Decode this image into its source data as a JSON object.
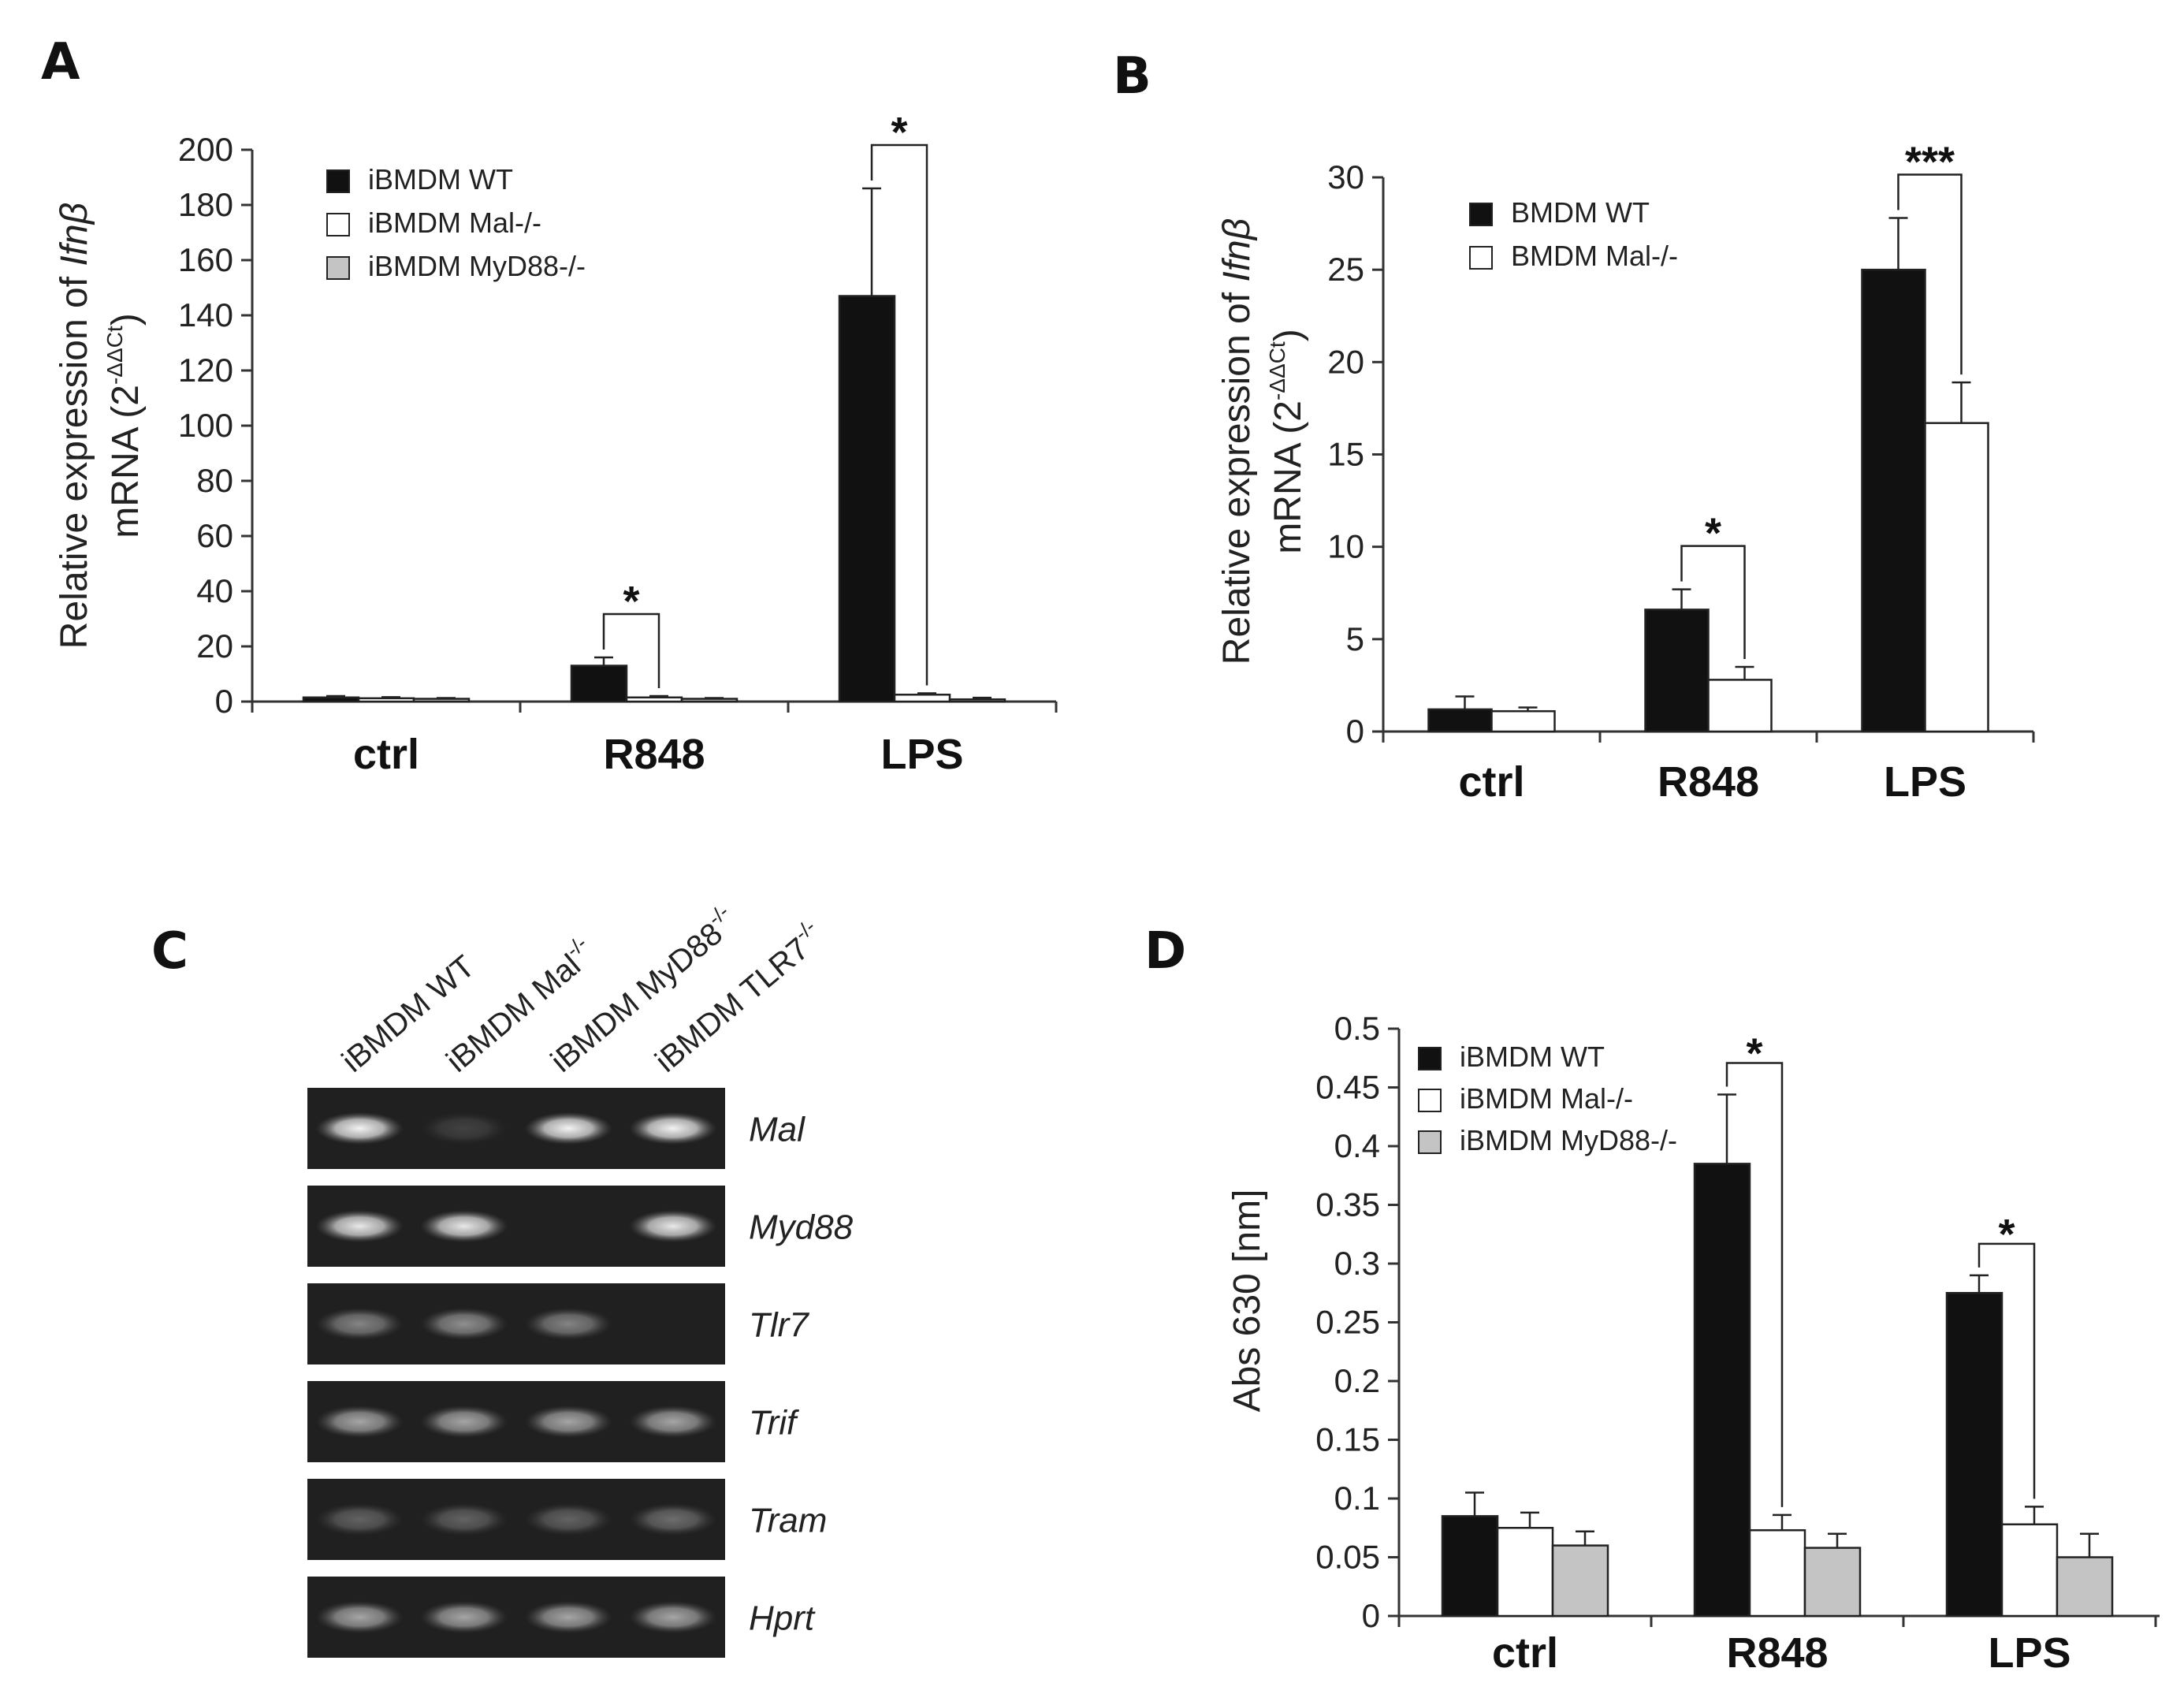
{
  "panels": {
    "A": "A",
    "B": "B",
    "C": "C",
    "D": "D"
  },
  "colors": {
    "wt": "#111111",
    "mal": "#ffffff",
    "myd88": "#c4c4c4",
    "gel_bg": "#202020",
    "band": "#d8d8d8"
  },
  "chart_data": [
    {
      "panel": "A",
      "type": "bar",
      "ylabel_line1_prefix": "Relative expression of ",
      "ylabel_line1_gene": "Ifnβ",
      "ylabel_line2_prefix": "mRNA (2",
      "ylabel_line2_sup": "-ΔΔCt",
      "ylabel_line2_suffix": ")",
      "ylim": [
        0,
        200
      ],
      "yticks": [
        0,
        20,
        40,
        60,
        80,
        100,
        120,
        140,
        160,
        180,
        200
      ],
      "legend_position": "top-left",
      "categories": [
        "ctrl",
        "R848",
        "LPS"
      ],
      "series": [
        {
          "name": "iBMDM WT",
          "color_key": "wt",
          "values": [
            1.5,
            13,
            147
          ],
          "errors": [
            0.5,
            3,
            39
          ]
        },
        {
          "name": "iBMDM Mal-/-",
          "color_key": "mal",
          "values": [
            1.2,
            1.5,
            2.5
          ],
          "errors": [
            0.4,
            0.5,
            0.5
          ]
        },
        {
          "name": "iBMDM MyD88-/-",
          "color_key": "myd88",
          "values": [
            1,
            1,
            0.8
          ],
          "errors": [
            0.3,
            0.3,
            0.6
          ]
        }
      ],
      "annotations": [
        {
          "category": "R848",
          "text": "*",
          "from_series": 0,
          "to_series": 1
        },
        {
          "category": "LPS",
          "text": "*",
          "from_series": 0,
          "to_series": 1
        }
      ]
    },
    {
      "panel": "B",
      "type": "bar",
      "ylabel_line1_prefix": "Relative expression of ",
      "ylabel_line1_gene": "Ifnβ",
      "ylabel_line2_prefix": "mRNA (2",
      "ylabel_line2_sup": "-ΔΔCt",
      "ylabel_line2_suffix": ")",
      "ylim": [
        0,
        30
      ],
      "yticks": [
        0,
        5,
        10,
        15,
        20,
        25,
        30
      ],
      "legend_position": "top-left",
      "categories": [
        "ctrl",
        "R848",
        "LPS"
      ],
      "series": [
        {
          "name": "BMDM WT",
          "color_key": "wt",
          "values": [
            1.2,
            6.6,
            25
          ],
          "errors": [
            0.7,
            1.1,
            2.8
          ]
        },
        {
          "name": "BMDM Mal-/-",
          "color_key": "mal",
          "values": [
            1.1,
            2.8,
            16.7
          ],
          "errors": [
            0.2,
            0.7,
            2.2
          ]
        }
      ],
      "annotations": [
        {
          "category": "R848",
          "text": "*",
          "from_series": 0,
          "to_series": 1
        },
        {
          "category": "LPS",
          "text": "***",
          "from_series": 0,
          "to_series": 1
        }
      ]
    },
    {
      "panel": "D",
      "type": "bar",
      "ylabel": "Abs 630 [nm]",
      "ylim": [
        0,
        0.5
      ],
      "yticks": [
        0,
        0.05,
        0.1,
        0.15,
        0.2,
        0.25,
        0.3,
        0.35,
        0.4,
        0.45,
        0.5
      ],
      "legend_position": "top-left",
      "categories": [
        "ctrl",
        "R848",
        "LPS"
      ],
      "series": [
        {
          "name": "iBMDM WT",
          "color_key": "wt",
          "values": [
            0.085,
            0.385,
            0.275
          ],
          "errors": [
            0.02,
            0.059,
            0.015
          ]
        },
        {
          "name": "iBMDM Mal-/-",
          "color_key": "mal",
          "values": [
            0.075,
            0.073,
            0.078
          ],
          "errors": [
            0.013,
            0.013,
            0.015
          ]
        },
        {
          "name": "iBMDM MyD88-/-",
          "color_key": "myd88",
          "values": [
            0.06,
            0.058,
            0.05
          ],
          "errors": [
            0.012,
            0.012,
            0.02
          ]
        }
      ],
      "annotations": [
        {
          "category": "R848",
          "text": "*",
          "from_series": 0,
          "to_series": 1
        },
        {
          "category": "LPS",
          "text": "*",
          "from_series": 0,
          "to_series": 1
        }
      ]
    }
  ],
  "gel": {
    "panel": "C",
    "lanes": [
      {
        "label": "iBMDM WT",
        "sup": ""
      },
      {
        "label": "iBMDM Mal",
        "sup": "-/-"
      },
      {
        "label": "iBMDM MyD88",
        "sup": "-/-"
      },
      {
        "label": "iBMDM TLR7",
        "sup": "-/-"
      }
    ],
    "rows": [
      {
        "gene": "Mal",
        "intensity": [
          0.95,
          0.15,
          0.95,
          0.95
        ]
      },
      {
        "gene": "Myd88",
        "intensity": [
          0.9,
          0.9,
          0.0,
          0.9
        ]
      },
      {
        "gene": "Tlr7",
        "intensity": [
          0.45,
          0.5,
          0.45,
          0.0
        ]
      },
      {
        "gene": "Trif",
        "intensity": [
          0.6,
          0.6,
          0.6,
          0.6
        ]
      },
      {
        "gene": "Tram",
        "intensity": [
          0.3,
          0.3,
          0.3,
          0.35
        ]
      },
      {
        "gene": "Hprt",
        "intensity": [
          0.6,
          0.6,
          0.6,
          0.6
        ]
      }
    ]
  }
}
